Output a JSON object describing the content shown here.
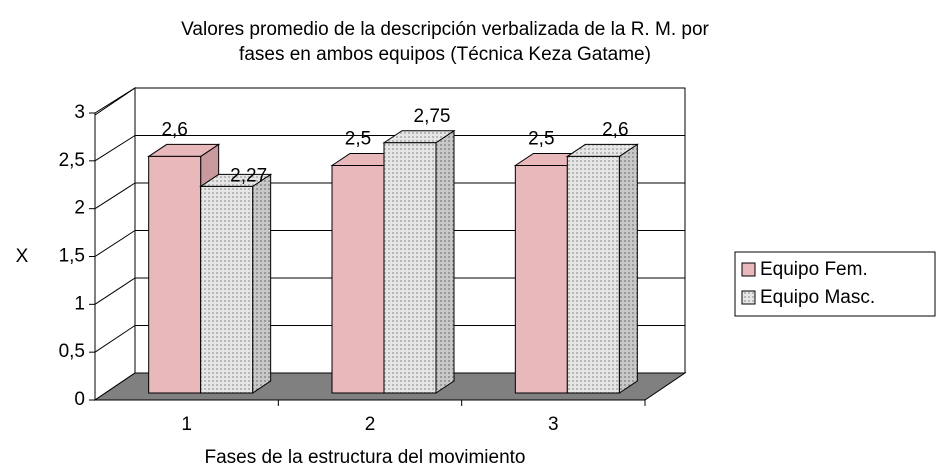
{
  "chart_data": {
    "type": "bar3d",
    "title": [
      "Valores promedio de la descripción verbalizada de la R. M. por",
      "fases en ambos equipos (Técnica Keza Gatame)"
    ],
    "x_label": "Fases de la estructura del movimiento",
    "y_label": "X",
    "categories": [
      "1",
      "2",
      "3"
    ],
    "series": [
      {
        "name": "Equipo Fem.",
        "color": "#e8b8ba",
        "values": [
          2.6,
          2.5,
          2.5
        ],
        "value_labels": [
          "2,6",
          "2,5",
          "2,5"
        ]
      },
      {
        "name": "Equipo Masc.",
        "color": "#dcdcdc",
        "values": [
          2.27,
          2.75,
          2.6
        ],
        "value_labels": [
          "2,27",
          "2,75",
          "2,6"
        ]
      }
    ],
    "ylim": [
      0,
      3
    ],
    "yticks": [
      0,
      {
        "value": 0.5,
        "label": "0,5"
      },
      1,
      {
        "value": 1.5,
        "label": "1,5"
      },
      2,
      {
        "value": 2.5,
        "label": "2,5"
      },
      3
    ],
    "grid": true,
    "legend": "right"
  }
}
